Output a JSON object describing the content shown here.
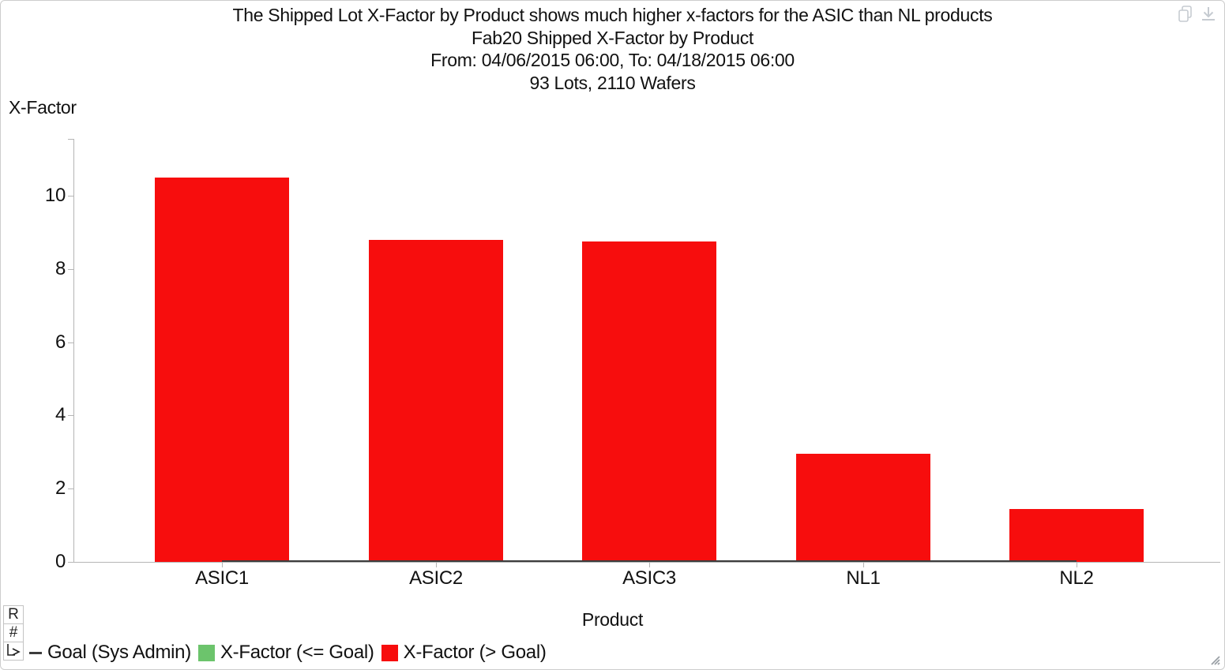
{
  "chart_data": {
    "type": "bar",
    "annotation": "The Shipped Lot X-Factor by Product shows much higher x-factors for the ASIC than NL products",
    "title": "Fab20 Shipped X-Factor by Product",
    "date_range": "From: 04/06/2015 06:00, To: 04/18/2015 06:00",
    "totals": "93 Lots, 2110 Wafers",
    "xlabel": "Product",
    "ylabel": "X-Factor",
    "categories": [
      "ASIC1",
      "ASIC2",
      "ASIC3",
      "NL1",
      "NL2"
    ],
    "series": [
      {
        "name": "X-Factor (> Goal)",
        "values": [
          10.5,
          8.8,
          8.75,
          2.95,
          1.45
        ],
        "color": "#f70d0d"
      }
    ],
    "goal": {
      "label": "Goal (Sys Admin)",
      "value": 0,
      "color": "#3c3c3c"
    },
    "ylim": [
      0,
      11.55
    ],
    "yticks": [
      0,
      2,
      4,
      6,
      8,
      10
    ],
    "grid": false,
    "legend_position": "bottom-left",
    "bar_color_rule": {
      "over_goal": "#f70d0d",
      "under_goal": "#6cc46c"
    },
    "legend": {
      "items": [
        {
          "label": "Goal (Sys Admin)",
          "marker": "line",
          "color": "#3c3c3c"
        },
        {
          "label": "X-Factor (<= Goal)",
          "marker": "square",
          "color": "#6cc46c"
        },
        {
          "label": "X-Factor (> Goal)",
          "marker": "square",
          "color": "#f70d0d"
        }
      ]
    }
  },
  "controls": {
    "side_buttons": [
      {
        "name": "r-button",
        "label": "R"
      },
      {
        "name": "hash-button",
        "label": "#"
      },
      {
        "name": "corner-arrow-button",
        "label": ""
      }
    ],
    "top_icons": [
      {
        "name": "copy-icon"
      },
      {
        "name": "download-icon"
      }
    ]
  },
  "colors": {
    "axis": "#b5b5b5",
    "text": "#111111",
    "icon_gray": "#c6cbd1",
    "window_border": "#cdcdcd"
  }
}
